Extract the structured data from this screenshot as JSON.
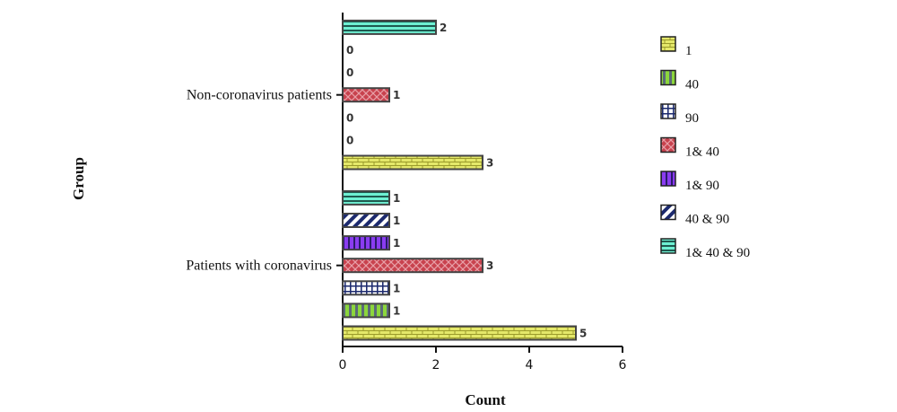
{
  "chart_data": {
    "type": "bar",
    "orientation": "horizontal",
    "categories": [
      "Non-coronavirus patients",
      "Patients with coronavirus"
    ],
    "series": [
      {
        "name": "1",
        "values": [
          3,
          5
        ],
        "color": "#e4e86a",
        "pattern": "brick"
      },
      {
        "name": "40",
        "values": [
          0,
          1
        ],
        "color": "#8cd63c",
        "pattern": "vstripes"
      },
      {
        "name": "90",
        "values": [
          0,
          1
        ],
        "color": "#1c2a6e",
        "pattern": "grid"
      },
      {
        "name": "1& 40",
        "values": [
          1,
          3
        ],
        "color": "#c8424e",
        "pattern": "crosshatch"
      },
      {
        "name": "1& 90",
        "values": [
          0,
          1
        ],
        "color": "#8a3cf0",
        "pattern": "vstripes-dark"
      },
      {
        "name": "40 & 90",
        "values": [
          0,
          1
        ],
        "color": "#1c2a6e",
        "pattern": "diagonal"
      },
      {
        "name": "1& 40 & 90",
        "values": [
          2,
          1
        ],
        "color": "#6ef0d2",
        "pattern": "hstripes"
      }
    ],
    "xlabel": "Count",
    "ylabel": "Group",
    "xlim": [
      0,
      6
    ],
    "xticks": [
      0,
      2,
      4,
      6
    ],
    "grid": false,
    "legend_position": "right"
  }
}
